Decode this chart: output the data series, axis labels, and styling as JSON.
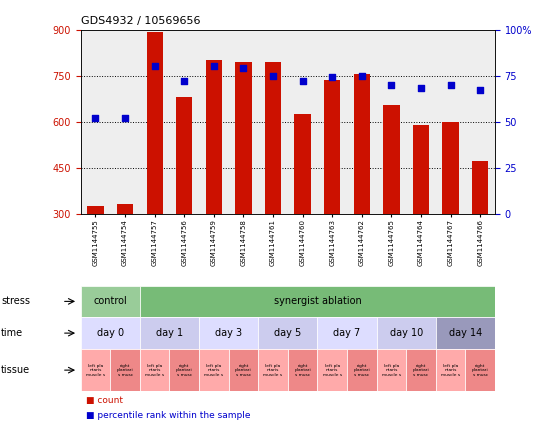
{
  "title": "GDS4932 / 10569656",
  "samples": [
    "GSM1144755",
    "GSM1144754",
    "GSM1144757",
    "GSM1144756",
    "GSM1144759",
    "GSM1144758",
    "GSM1144761",
    "GSM1144760",
    "GSM1144763",
    "GSM1144762",
    "GSM1144765",
    "GSM1144764",
    "GSM1144767",
    "GSM1144766"
  ],
  "counts": [
    325,
    330,
    893,
    680,
    800,
    795,
    795,
    625,
    735,
    755,
    655,
    590,
    600,
    470
  ],
  "percentiles": [
    52,
    52,
    80,
    72,
    80,
    79,
    75,
    72,
    74,
    75,
    70,
    68,
    70,
    67
  ],
  "ylim_left": [
    300,
    900
  ],
  "ylim_right": [
    0,
    100
  ],
  "yticks_left": [
    300,
    450,
    600,
    750,
    900
  ],
  "yticks_right": [
    0,
    25,
    50,
    75,
    100
  ],
  "bar_color": "#cc1100",
  "dot_color": "#0000cc",
  "bg_color": "#eeeeee",
  "stress_groups": [
    {
      "label": "control",
      "start": 0,
      "end": 2,
      "color": "#99cc99"
    },
    {
      "label": "synergist ablation",
      "start": 2,
      "end": 14,
      "color": "#77bb77"
    }
  ],
  "time_groups": [
    {
      "label": "day 0",
      "start": 0,
      "end": 2,
      "color": "#ddddff"
    },
    {
      "label": "day 1",
      "start": 2,
      "end": 4,
      "color": "#ccccee"
    },
    {
      "label": "day 3",
      "start": 4,
      "end": 6,
      "color": "#ddddff"
    },
    {
      "label": "day 5",
      "start": 6,
      "end": 8,
      "color": "#ccccee"
    },
    {
      "label": "day 7",
      "start": 8,
      "end": 10,
      "color": "#ddddff"
    },
    {
      "label": "day 10",
      "start": 10,
      "end": 12,
      "color": "#ccccee"
    },
    {
      "label": "day 14",
      "start": 12,
      "end": 14,
      "color": "#9999bb"
    }
  ],
  "tissue_left_color": "#ffaaaa",
  "tissue_right_color": "#ee8888",
  "tissue_left_label": "left pla\nntaris\nmuscle s",
  "tissue_right_label": "right\nplantari\ns musc",
  "left_labels": [
    "stress",
    "time",
    "tissue"
  ],
  "legend_count_color": "#cc1100",
  "legend_pct_color": "#0000cc",
  "legend_count_label": "count",
  "legend_pct_label": "percentile rank within the sample"
}
